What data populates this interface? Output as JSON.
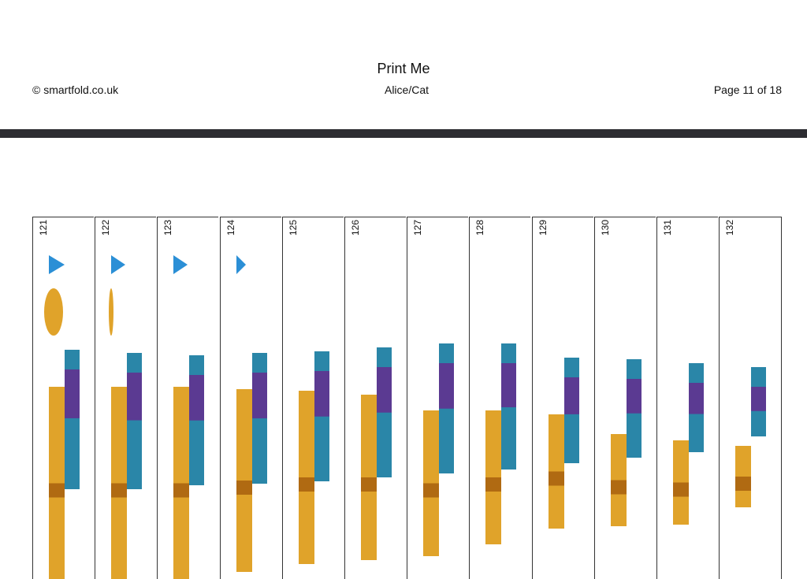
{
  "header": {
    "title": "Print Me",
    "copyright": "© smartfold.co.uk",
    "subtitle": "Alice/Cat",
    "page": "Page 11 of 18"
  },
  "strips": {
    "numbers": [
      "121",
      "122",
      "123",
      "124",
      "125",
      "126",
      "127",
      "128",
      "129",
      "130",
      "131",
      "132"
    ]
  },
  "colors": {
    "bar": "#2d2d32",
    "gold": "#e0a32a",
    "teal": "#2a86a8",
    "purple": "#5b3a92",
    "blue": "#2b8fd6"
  }
}
